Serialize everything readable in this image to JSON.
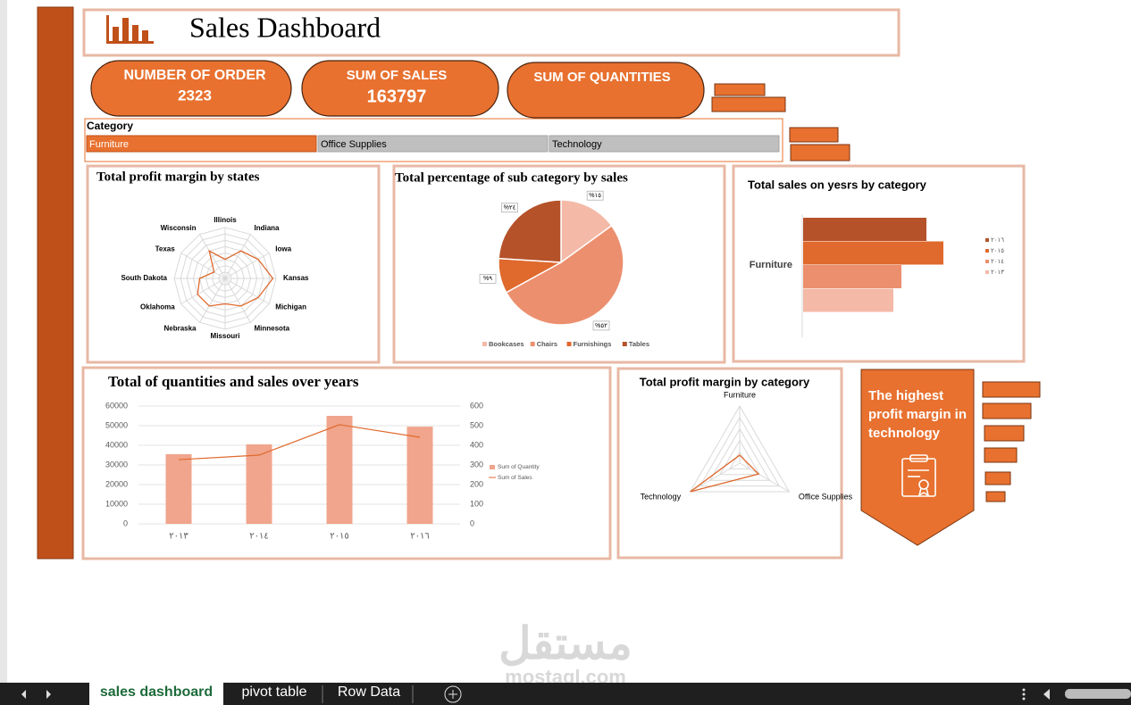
{
  "header": {
    "title": "Sales Dashboard"
  },
  "kpis": [
    {
      "label": "NUMBER OF ORDER",
      "value": 2323
    },
    {
      "label": "SUM OF SALES",
      "value": 163797
    },
    {
      "label": "SUM OF QUANTITIES"
    }
  ],
  "slicer": {
    "title": "Category",
    "items": [
      "Furniture",
      "Office Supplies",
      "Technology"
    ],
    "selected": 0
  },
  "callout": "The highest profit margin in technology",
  "sheet_tabs": [
    "sales dashboard",
    "pivot table",
    "Row Data"
  ],
  "active_tab": 0,
  "watermark": [
    "مستقل",
    "mostaql.com"
  ],
  "chart_data": [
    {
      "type": "radar",
      "title": "Total profit margin by states",
      "categories": [
        "Illinois",
        "Indiana",
        "Iowa",
        "Kansas",
        "Michigan",
        "Minnesota",
        "Missouri",
        "Nebraska",
        "Oklahoma",
        "South Dakota",
        "Texas",
        "Wisconsin"
      ],
      "values": [
        3,
        5,
        6,
        7.5,
        6,
        5,
        4,
        5,
        5,
        4,
        2,
        5
      ],
      "color": "#e0692e",
      "ylim": [
        0,
        8
      ]
    },
    {
      "type": "pie",
      "title": "Total percentage of sub category by sales",
      "categories": [
        "Bookcases",
        "Chairs",
        "Furnishings",
        "Tables"
      ],
      "values": [
        15,
        52,
        9,
        24
      ],
      "value_labels": [
        "%١٥",
        "%٥٢",
        "%٩",
        "%٢٤"
      ],
      "colors": [
        "#f4b9a7",
        "#ec8f6e",
        "#e0692e",
        "#b5522a"
      ],
      "legend": "bottom"
    },
    {
      "type": "bar",
      "orientation": "horizontal",
      "title": "Total sales  on yesrs by category",
      "categories": [
        "Furniture"
      ],
      "series": [
        {
          "name": "٢٠١٦",
          "color": "#b5522a",
          "values": [
            138
          ]
        },
        {
          "name": "٢٠١٥",
          "color": "#e0692e",
          "values": [
            157
          ]
        },
        {
          "name": "٢٠١٤",
          "color": "#ec8f6e",
          "values": [
            110
          ]
        },
        {
          "name": "٢٠١٣",
          "color": "#f4b9a7",
          "values": [
            101
          ]
        }
      ],
      "xlim": [
        0,
        160
      ],
      "legend": "right"
    },
    {
      "type": "combo",
      "title": "Total of quantities and sales over years",
      "categories": [
        "٢٠١٣",
        "٢٠١٤",
        "٢٠١٥",
        "٢٠١٦"
      ],
      "series": [
        {
          "name": "Sum of Quantity",
          "type": "bar",
          "color": "#f0a58c",
          "values": [
            35500,
            40500,
            55000,
            49500
          ]
        },
        {
          "name": "Sum of Sales",
          "type": "line",
          "axis": "y2",
          "color": "#e0692e",
          "values": [
            327,
            350,
            505,
            441
          ]
        }
      ],
      "ylim": [
        0,
        60000
      ],
      "yticks": [
        0,
        10000,
        20000,
        30000,
        40000,
        50000,
        60000
      ],
      "y2lim": [
        0,
        600
      ],
      "y2ticks": [
        0,
        100,
        200,
        300,
        400,
        500,
        600
      ],
      "grid": true,
      "legend": "right"
    },
    {
      "type": "radar",
      "title": "Total profit margin by category",
      "categories": [
        "Furniture",
        "Office Supplies",
        "Technology"
      ],
      "values": [
        0.7,
        1.9,
        5
      ],
      "color": "#e0692e",
      "ylim": [
        0,
        5
      ]
    }
  ]
}
